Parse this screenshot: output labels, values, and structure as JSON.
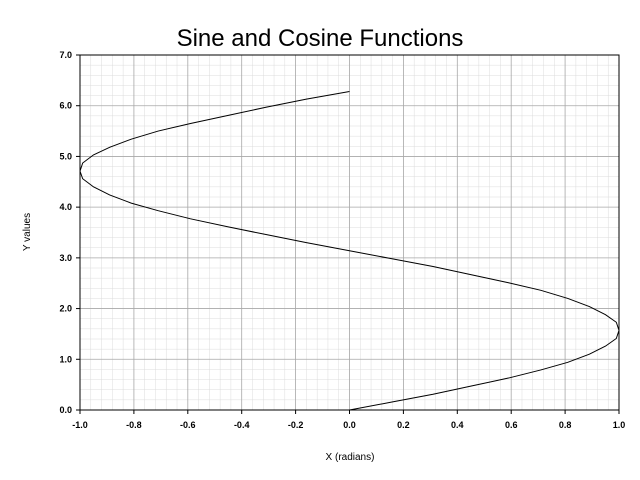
{
  "chart_data": {
    "type": "line",
    "title": "Sine and Cosine Functions",
    "xlabel": "X (radians)",
    "ylabel": "Y values",
    "xlim": [
      -1.0,
      1.0
    ],
    "ylim": [
      0.0,
      7.0
    ],
    "x_ticks": [
      "-1.0",
      "-0.8",
      "-0.6",
      "-0.4",
      "-0.2",
      "0.0",
      "0.2",
      "0.4",
      "0.6",
      "0.8",
      "1.0"
    ],
    "y_ticks": [
      "0.0",
      "1.0",
      "2.0",
      "3.0",
      "4.0",
      "5.0",
      "6.0",
      "7.0"
    ],
    "x_tick_values": [
      -1.0,
      -0.8,
      -0.6,
      -0.4,
      -0.2,
      0.0,
      0.2,
      0.4,
      0.6,
      0.8,
      1.0
    ],
    "y_tick_values": [
      0,
      1,
      2,
      3,
      4,
      5,
      6,
      7
    ],
    "grid": true,
    "series": [
      {
        "x": [
          0.0,
          0.16,
          0.31,
          0.45,
          0.59,
          0.71,
          0.81,
          0.89,
          0.95,
          0.99,
          1.0,
          0.99,
          0.95,
          0.89,
          0.81,
          0.71,
          0.59,
          0.45,
          0.31,
          0.16,
          0.0,
          -0.16,
          -0.31,
          -0.45,
          -0.59,
          -0.71,
          -0.81,
          -0.89,
          -0.95,
          -0.99,
          -1.0,
          -0.99,
          -0.95,
          -0.89,
          -0.81,
          -0.71,
          -0.59,
          -0.45,
          -0.31,
          -0.16,
          0.0
        ],
        "y": [
          0.0,
          0.16,
          0.31,
          0.47,
          0.63,
          0.79,
          0.94,
          1.1,
          1.26,
          1.41,
          1.57,
          1.73,
          1.88,
          2.04,
          2.2,
          2.36,
          2.51,
          2.67,
          2.83,
          2.98,
          3.14,
          3.3,
          3.46,
          3.61,
          3.77,
          3.93,
          4.08,
          4.24,
          4.4,
          4.56,
          4.71,
          4.87,
          5.03,
          5.18,
          5.34,
          5.5,
          5.65,
          5.81,
          5.97,
          6.13,
          6.28
        ],
        "color": "#000000"
      }
    ]
  },
  "colors": {
    "major_grid": "#a9a9a9",
    "minor_grid": "#dcdcdc",
    "line": "#000000"
  }
}
